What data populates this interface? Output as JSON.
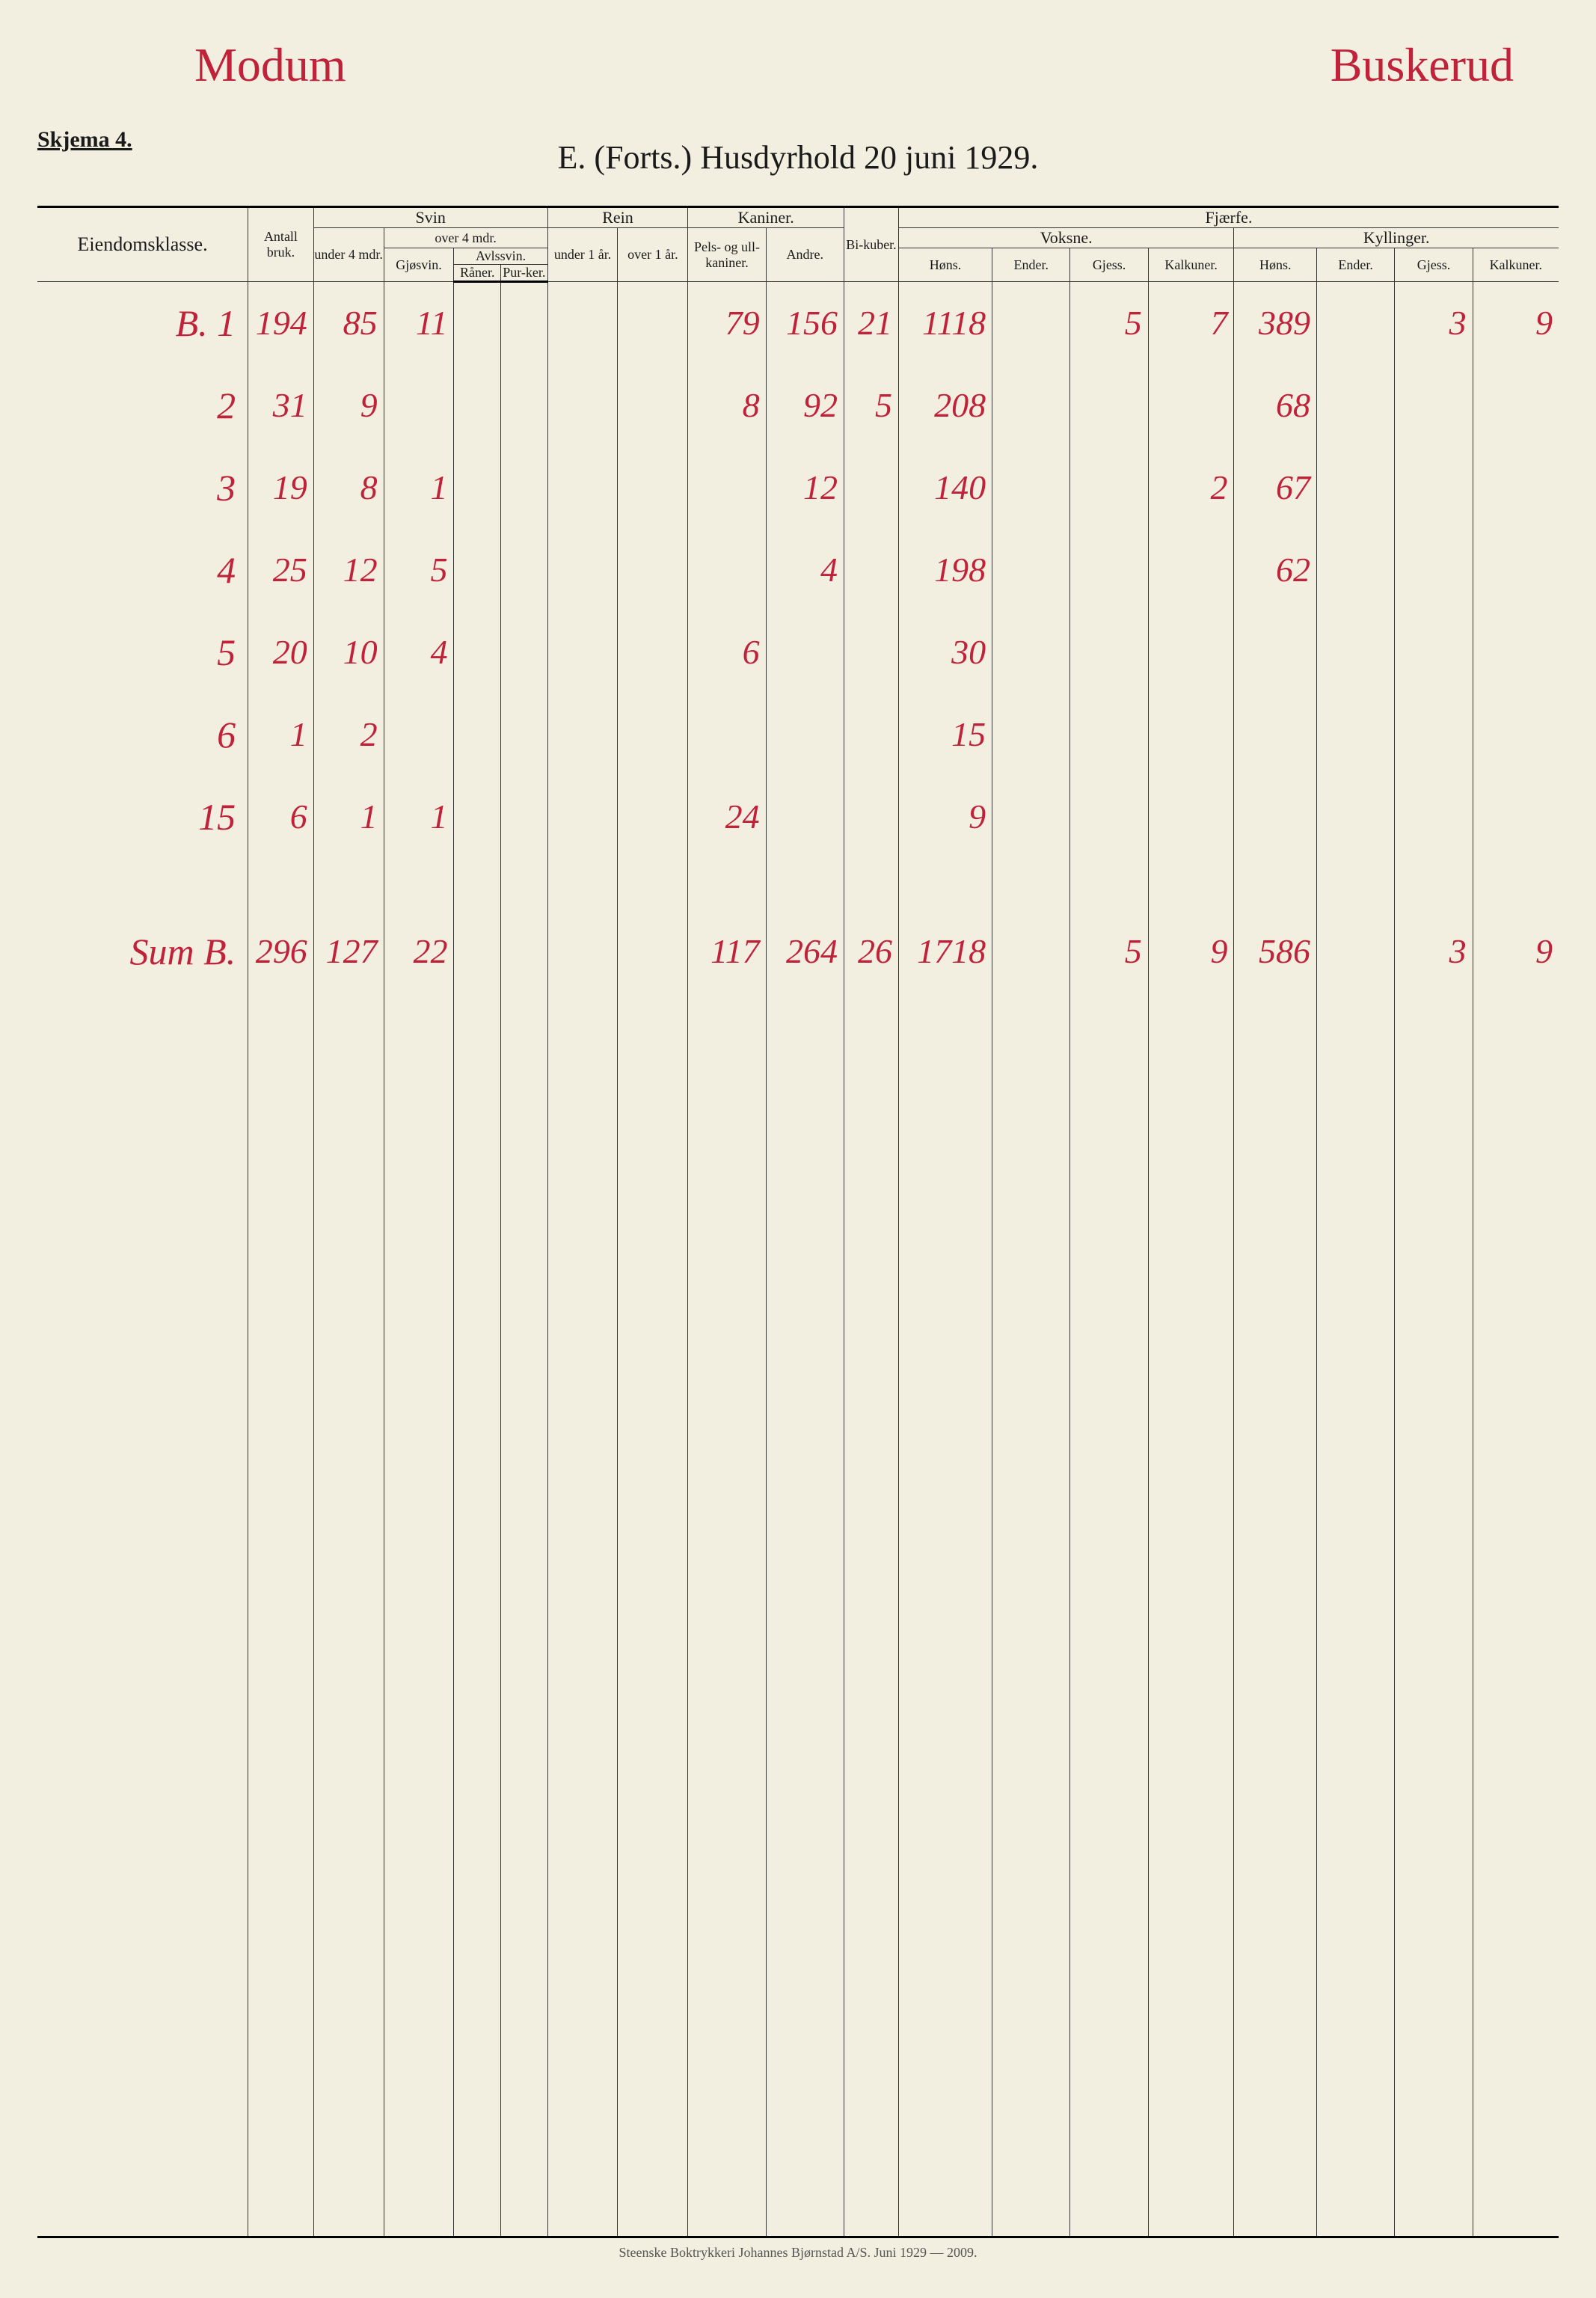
{
  "handwriting_color": "#c0223a",
  "paper_color": "#f2efe0",
  "ink_color": "#1a1a1a",
  "top_left_handwritten": "Modum",
  "top_right_handwritten": "Buskerud",
  "skjema_label": "Skjema 4.",
  "title": "E. (Forts.) Husdyrhold 20 juni 1929.",
  "footer": "Steenske Boktrykkeri Johannes Bjørnstad A/S.  Juni 1929 — 2009.",
  "columns": {
    "eiendomsklasse": "Eiendomsklasse.",
    "antall_bruk": "Antall bruk.",
    "svin": "Svin",
    "svin_under4": "under 4 mdr.",
    "svin_over4": "over 4 mdr.",
    "svin_gjosvin": "Gjøsvin.",
    "svin_avlssvin": "Avlssvin.",
    "svin_raner": "Råner.",
    "svin_purker": "Pur-ker.",
    "rein": "Rein",
    "rein_under1": "under 1 år.",
    "rein_over1": "over 1 år.",
    "kaniner": "Kaniner.",
    "kan_pels": "Pels- og ull-kaniner.",
    "kan_andre": "Andre.",
    "bikuber": "Bi-kuber.",
    "fjaerfe": "Fjærfe.",
    "voksne": "Voksne.",
    "kyllinger": "Kyllinger.",
    "hons": "Høns.",
    "ender": "Ender.",
    "gjess": "Gjess.",
    "kalkuner": "Kalkuner."
  },
  "col_widths_pct": [
    13.5,
    4.2,
    4.5,
    4.5,
    3.0,
    3.0,
    4.5,
    4.5,
    5.0,
    5.0,
    3.5,
    6.0,
    5.0,
    5.0,
    5.5,
    5.3,
    5.0,
    5.0,
    5.5
  ],
  "rows": [
    {
      "label": "B. 1",
      "cells": [
        "194",
        "85",
        "11",
        "",
        "",
        "",
        "",
        "79",
        "156",
        "21",
        "1118",
        "",
        "5",
        "7",
        "389",
        "",
        "3",
        "9"
      ]
    },
    {
      "label": "2",
      "cells": [
        "31",
        "9",
        "",
        "",
        "",
        "",
        "",
        "8",
        "92",
        "5",
        "208",
        "",
        "",
        "",
        "68",
        "",
        "",
        ""
      ]
    },
    {
      "label": "3",
      "cells": [
        "19",
        "8",
        "1",
        "",
        "",
        "",
        "",
        "",
        "12",
        "",
        "140",
        "",
        "",
        "2",
        "67",
        "",
        "",
        ""
      ]
    },
    {
      "label": "4",
      "cells": [
        "25",
        "12",
        "5",
        "",
        "",
        "",
        "",
        "",
        "4",
        "",
        "198",
        "",
        "",
        "",
        "62",
        "",
        "",
        ""
      ]
    },
    {
      "label": "5",
      "cells": [
        "20",
        "10",
        "4",
        "",
        "",
        "",
        "",
        "6",
        "",
        "",
        "30",
        "",
        "",
        "",
        "",
        "",
        "",
        ""
      ]
    },
    {
      "label": "6",
      "cells": [
        "1",
        "2",
        "",
        "",
        "",
        "",
        "",
        "",
        "",
        "",
        "15",
        "",
        "",
        "",
        "",
        "",
        "",
        ""
      ]
    },
    {
      "label": "15",
      "cells": [
        "6",
        "1",
        "1",
        "",
        "",
        "",
        "",
        "24",
        "",
        "",
        "9",
        "",
        "",
        "",
        "",
        "",
        "",
        ""
      ]
    }
  ],
  "sum_row": {
    "label": "Sum B.",
    "cells": [
      "296",
      "127",
      "22",
      "",
      "",
      "",
      "",
      "117",
      "264",
      "26",
      "1718",
      "",
      "5",
      "9",
      "586",
      "",
      "3",
      "9"
    ]
  }
}
